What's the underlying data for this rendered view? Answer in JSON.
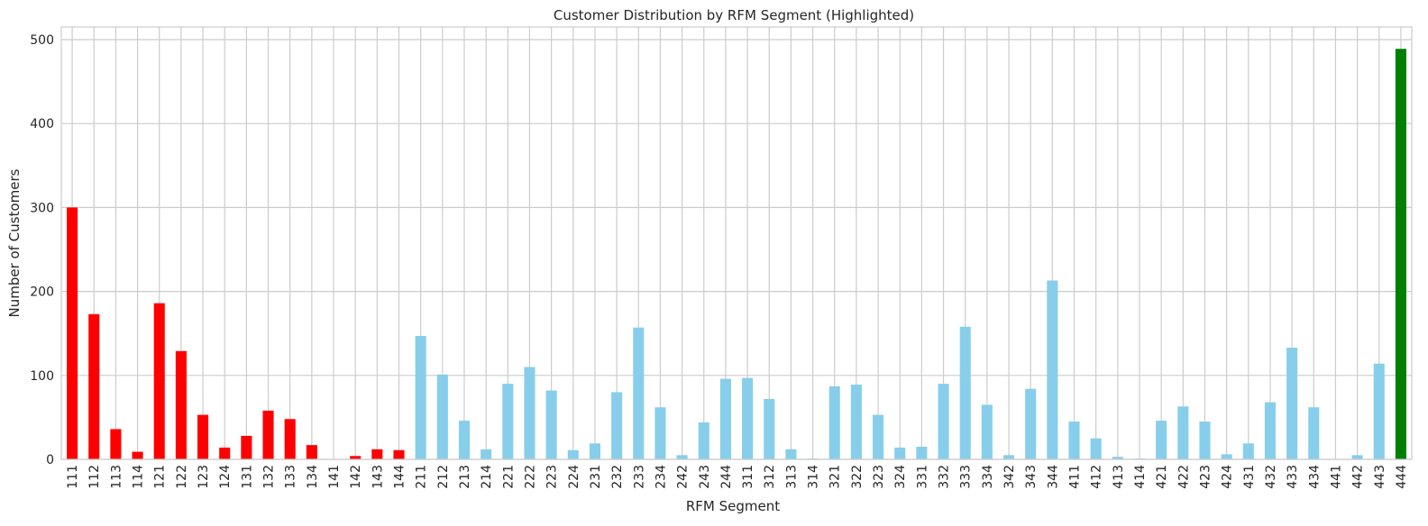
{
  "chart_data": {
    "type": "bar",
    "title": "Customer Distribution by RFM Segment (Highlighted)",
    "xlabel": "RFM Segment",
    "ylabel": "Number of Customers",
    "ylim": [
      0,
      515
    ],
    "yticks": [
      0,
      100,
      200,
      300,
      400,
      500
    ],
    "grid": true,
    "categories": [
      "111",
      "112",
      "113",
      "114",
      "121",
      "122",
      "123",
      "124",
      "131",
      "132",
      "133",
      "134",
      "141",
      "142",
      "143",
      "144",
      "211",
      "212",
      "213",
      "214",
      "221",
      "222",
      "223",
      "224",
      "231",
      "232",
      "233",
      "234",
      "242",
      "243",
      "244",
      "311",
      "312",
      "313",
      "314",
      "321",
      "322",
      "323",
      "324",
      "331",
      "332",
      "333",
      "334",
      "342",
      "343",
      "344",
      "411",
      "412",
      "413",
      "414",
      "421",
      "422",
      "423",
      "424",
      "431",
      "432",
      "433",
      "434",
      "441",
      "442",
      "443",
      "444"
    ],
    "values": [
      300,
      173,
      36,
      9,
      186,
      129,
      53,
      14,
      28,
      58,
      48,
      17,
      0,
      4,
      12,
      11,
      147,
      101,
      46,
      12,
      90,
      110,
      82,
      11,
      19,
      80,
      157,
      62,
      5,
      44,
      96,
      97,
      72,
      12,
      1,
      87,
      89,
      53,
      14,
      15,
      90,
      158,
      65,
      5,
      84,
      213,
      45,
      25,
      3,
      1,
      46,
      63,
      45,
      6,
      19,
      68,
      133,
      62,
      0,
      5,
      114,
      489
    ],
    "colors": {
      "low": "#ff0000",
      "mid": "#87ceeb",
      "top": "#008000",
      "grid": "#cccccc",
      "frame": "#cccccc",
      "text": "#262626"
    },
    "highlight_rule": "segments 111-144 red, 211-443 skyblue, 444 green"
  }
}
